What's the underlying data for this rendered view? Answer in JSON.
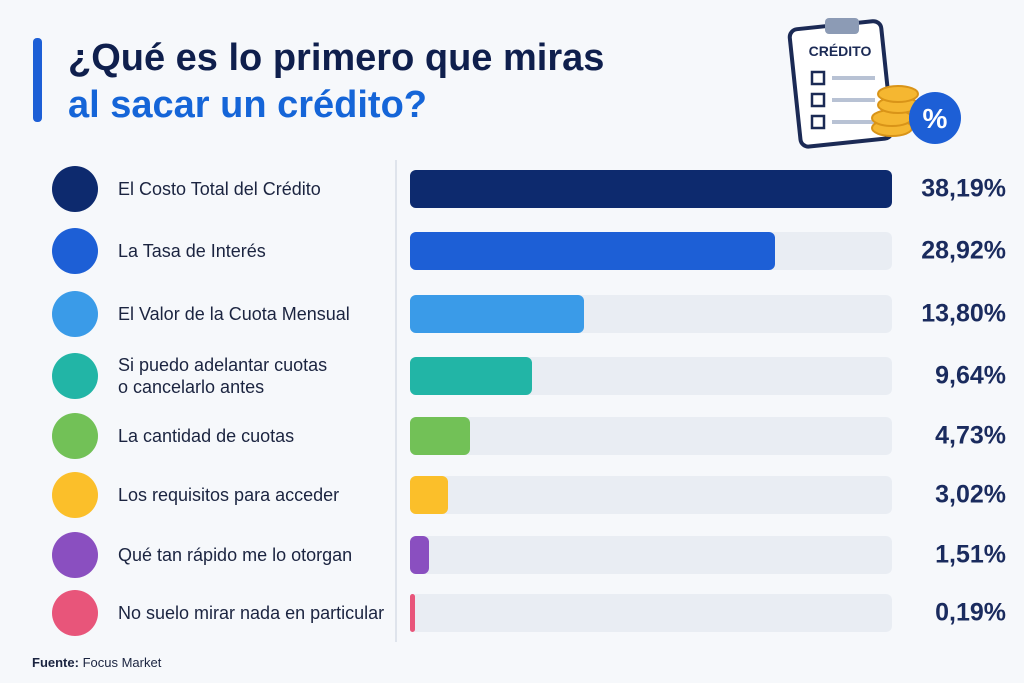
{
  "chart_data": {
    "type": "hbar",
    "title": "¿Qué es lo primero que miras",
    "subtitle": "al sacar un crédito?",
    "categories": [
      "El Costo Total del Crédito",
      "La Tasa de Interés",
      "El Valor de la Cuota Mensual",
      "Si puedo adelantar cuotas\no cancelarlo antes",
      "La cantidad de cuotas",
      "Los requisitos para acceder",
      "Qué tan rápido me lo otorgan",
      "No suelo mirar nada en particular"
    ],
    "values": [
      38.19,
      28.92,
      13.8,
      9.64,
      4.73,
      3.02,
      1.51,
      0.19
    ],
    "value_labels": [
      "38,19%",
      "28,92%",
      "13,80%",
      "9,64%",
      "4,73%",
      "3,02%",
      "1,51%",
      "0,19%"
    ],
    "colors": [
      "#0d2a6e",
      "#1d5fd6",
      "#3a9be8",
      "#22b5a6",
      "#72c157",
      "#fbbf2a",
      "#8a4fc0",
      "#e8557a"
    ],
    "xlim": [
      0,
      38.19
    ]
  },
  "badge": {
    "title": "CRÉDITO",
    "symbol": "%"
  },
  "source_label": "Fuente:",
  "source": "Focus Market"
}
